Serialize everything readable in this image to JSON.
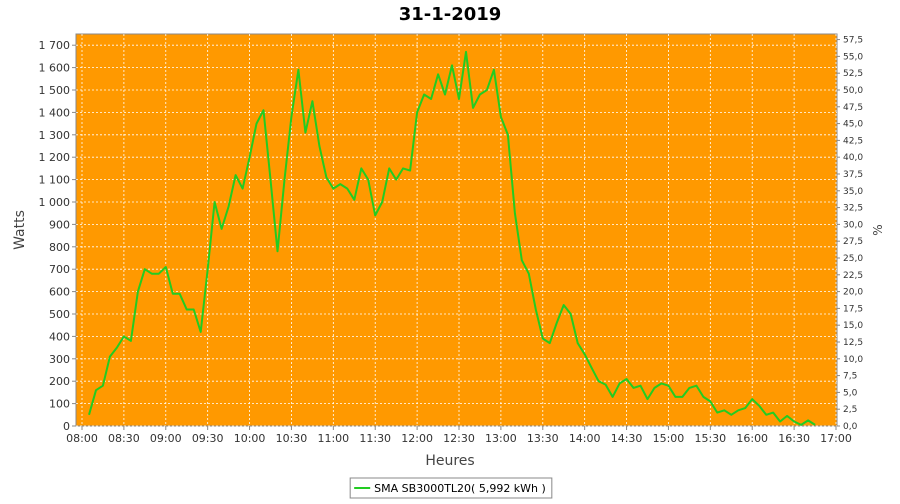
{
  "chart_data": {
    "type": "line",
    "title": "31-1-2019",
    "x_label": "Heures",
    "y_label": "Watts",
    "y2_label": "%",
    "x": [
      "08:05",
      "08:10",
      "08:15",
      "08:20",
      "08:25",
      "08:30",
      "08:35",
      "08:40",
      "08:45",
      "08:50",
      "08:55",
      "09:00",
      "09:05",
      "09:10",
      "09:15",
      "09:20",
      "09:25",
      "09:30",
      "09:35",
      "09:40",
      "09:45",
      "09:50",
      "09:55",
      "10:00",
      "10:05",
      "10:10",
      "10:15",
      "10:20",
      "10:25",
      "10:30",
      "10:35",
      "10:40",
      "10:45",
      "10:50",
      "10:55",
      "11:00",
      "11:05",
      "11:10",
      "11:15",
      "11:20",
      "11:25",
      "11:30",
      "11:35",
      "11:40",
      "11:45",
      "11:50",
      "11:55",
      "12:00",
      "12:05",
      "12:10",
      "12:15",
      "12:20",
      "12:25",
      "12:30",
      "12:35",
      "12:40",
      "12:45",
      "12:50",
      "12:55",
      "13:00",
      "13:05",
      "13:10",
      "13:15",
      "13:20",
      "13:25",
      "13:30",
      "13:35",
      "13:40",
      "13:45",
      "13:50",
      "13:55",
      "14:00",
      "14:05",
      "14:10",
      "14:15",
      "14:20",
      "14:25",
      "14:30",
      "14:35",
      "14:40",
      "14:45",
      "14:50",
      "14:55",
      "15:00",
      "15:05",
      "15:10",
      "15:15",
      "15:20",
      "15:25",
      "15:30",
      "15:35",
      "15:40",
      "15:45",
      "15:50",
      "15:55",
      "16:00",
      "16:05",
      "16:10",
      "16:15",
      "16:20",
      "16:25",
      "16:30",
      "16:35",
      "16:40",
      "16:45"
    ],
    "series": [
      {
        "name": "SMA SB3000TL20( 5,992 kWh )",
        "color": "#22cc22",
        "values": [
          50,
          160,
          180,
          310,
          350,
          400,
          380,
          600,
          700,
          680,
          680,
          710,
          590,
          590,
          520,
          520,
          420,
          700,
          1000,
          880,
          980,
          1120,
          1060,
          1200,
          1350,
          1410,
          1100,
          780,
          1100,
          1380,
          1590,
          1310,
          1450,
          1250,
          1110,
          1060,
          1080,
          1060,
          1010,
          1150,
          1100,
          940,
          1000,
          1150,
          1100,
          1150,
          1140,
          1400,
          1480,
          1460,
          1570,
          1480,
          1610,
          1460,
          1670,
          1420,
          1480,
          1500,
          1590,
          1380,
          1300,
          950,
          740,
          680,
          520,
          390,
          370,
          460,
          540,
          500,
          370,
          320,
          260,
          200,
          185,
          130,
          190,
          210,
          170,
          180,
          120,
          170,
          190,
          180,
          130,
          130,
          170,
          180,
          130,
          110,
          60,
          70,
          50,
          70,
          80,
          120,
          90,
          50,
          60,
          20,
          45,
          20,
          5,
          25,
          5
        ]
      }
    ],
    "xlim": [
      "08:00",
      "17:00"
    ],
    "xticks": [
      "08:00",
      "08:30",
      "09:00",
      "09:30",
      "10:00",
      "10:30",
      "11:00",
      "11:30",
      "12:00",
      "12:30",
      "13:00",
      "13:30",
      "14:00",
      "14:30",
      "15:00",
      "15:30",
      "16:00",
      "16:30",
      "17:00"
    ],
    "ylim": [
      0,
      1750
    ],
    "yticks": [
      0,
      100,
      200,
      300,
      400,
      500,
      600,
      700,
      800,
      900,
      {
        "value": 1000,
        "label": "1 000"
      },
      {
        "value": 1100,
        "label": "1 100"
      },
      {
        "value": 1200,
        "label": "1 200"
      },
      {
        "value": 1300,
        "label": "1 300"
      },
      {
        "value": 1400,
        "label": "1 400"
      },
      {
        "value": 1500,
        "label": "1 500"
      },
      {
        "value": 1600,
        "label": "1 600"
      },
      {
        "value": 1700,
        "label": "1 700"
      }
    ],
    "y2lim": [
      0,
      58.33
    ],
    "y2ticks": [
      {
        "value": 0,
        "label": "0,0"
      },
      {
        "value": 2.5,
        "label": "2,5"
      },
      {
        "value": 5,
        "label": "5,0"
      },
      {
        "value": 7.5,
        "label": "7,5"
      },
      {
        "value": 10,
        "label": "10,0"
      },
      {
        "value": 12.5,
        "label": "12,5"
      },
      {
        "value": 15,
        "label": "15,0"
      },
      {
        "value": 17.5,
        "label": "17,5"
      },
      {
        "value": 20,
        "label": "20,0"
      },
      {
        "value": 22.5,
        "label": "22,5"
      },
      {
        "value": 25,
        "label": "25,0"
      },
      {
        "value": 27.5,
        "label": "27,5"
      },
      {
        "value": 30,
        "label": "30,0"
      },
      {
        "value": 32.5,
        "label": "32,5"
      },
      {
        "value": 35,
        "label": "35,0"
      },
      {
        "value": 37.5,
        "label": "37,5"
      },
      {
        "value": 40,
        "label": "40,0"
      },
      {
        "value": 42.5,
        "label": "42,5"
      },
      {
        "value": 45,
        "label": "45,0"
      },
      {
        "value": 47.5,
        "label": "47,5"
      },
      {
        "value": 50,
        "label": "50,0"
      },
      {
        "value": 52.5,
        "label": "52,5"
      },
      {
        "value": 55,
        "label": "55,0"
      },
      {
        "value": 57.5,
        "label": "57,5"
      }
    ],
    "grid": true,
    "background": "#ff9900",
    "legend": "bottom"
  }
}
